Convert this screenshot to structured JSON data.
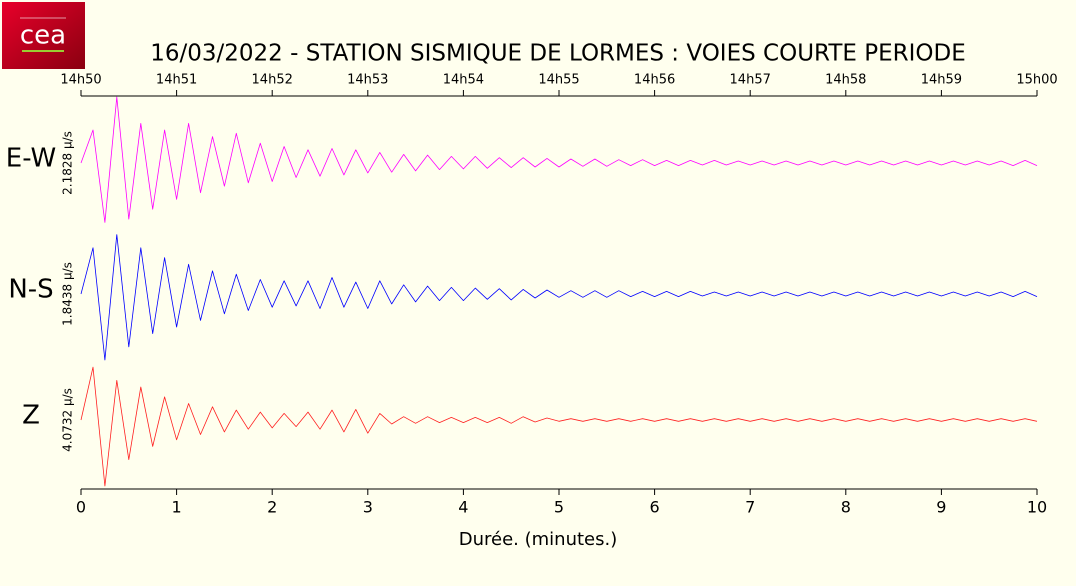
{
  "logo_text": "cea",
  "chart_data": {
    "type": "seismogram",
    "title": "16/03/2022  -  STATION SISMIQUE DE LORMES : VOIES COURTE PERIODE",
    "xlabel": "Durée.  (minutes.)",
    "xlim": [
      0,
      10
    ],
    "xticks": [
      0,
      1,
      2,
      3,
      4,
      5,
      6,
      7,
      8,
      9,
      10
    ],
    "x2ticks": [
      {
        "value": 0,
        "label": "14h50"
      },
      {
        "value": 1,
        "label": "14h51"
      },
      {
        "value": 2,
        "label": "14h52"
      },
      {
        "value": 3,
        "label": "14h53"
      },
      {
        "value": 4,
        "label": "14h54"
      },
      {
        "value": 5,
        "label": "14h55"
      },
      {
        "value": 6,
        "label": "14h56"
      },
      {
        "value": 7,
        "label": "14h57"
      },
      {
        "value": 8,
        "label": "14h58"
      },
      {
        "value": 9,
        "label": "14h59"
      },
      {
        "value": 10,
        "label": "15h00"
      }
    ],
    "ylim": [
      -1,
      1
    ],
    "x": [
      0,
      0.125,
      0.25,
      0.375,
      0.5,
      0.625,
      0.75,
      0.875,
      1,
      1.125,
      1.25,
      1.375,
      1.5,
      1.625,
      1.75,
      1.875,
      2,
      2.125,
      2.25,
      2.375,
      2.5,
      2.625,
      2.75,
      2.875,
      3,
      3.125,
      3.25,
      3.375,
      3.5,
      3.625,
      3.75,
      3.875,
      4,
      4.125,
      4.25,
      4.375,
      4.5,
      4.625,
      4.75,
      4.875,
      5,
      5.125,
      5.25,
      5.375,
      5.5,
      5.625,
      5.75,
      5.875,
      6,
      6.125,
      6.25,
      6.375,
      6.5,
      6.625,
      6.75,
      6.875,
      7,
      7.125,
      7.25,
      7.375,
      7.5,
      7.625,
      7.75,
      7.875,
      8,
      8.125,
      8.25,
      8.375,
      8.5,
      8.625,
      8.75,
      8.875,
      9,
      9.125,
      9.25,
      9.375,
      9.5,
      9.625,
      9.75,
      9.875,
      10
    ],
    "series": [
      {
        "name": "E-W",
        "scale": "2.1828 µ/s",
        "color": "#ff00ff",
        "values": [
          0,
          0.5,
          -0.9,
          1.0,
          -0.85,
          0.6,
          -0.7,
          0.5,
          -0.55,
          0.6,
          -0.45,
          0.4,
          -0.35,
          0.45,
          -0.3,
          0.3,
          -0.28,
          0.25,
          -0.22,
          0.2,
          -0.2,
          0.22,
          -0.18,
          0.2,
          -0.15,
          0.16,
          -0.14,
          0.13,
          -0.12,
          0.12,
          -0.1,
          0.1,
          -0.09,
          0.1,
          -0.08,
          0.08,
          -0.07,
          0.08,
          -0.06,
          0.07,
          -0.06,
          0.06,
          -0.05,
          0.06,
          -0.05,
          0.05,
          -0.04,
          0.05,
          -0.04,
          0.04,
          -0.04,
          0.04,
          -0.03,
          0.04,
          -0.03,
          0.03,
          -0.03,
          0.03,
          -0.03,
          0.03,
          -0.03,
          0.03,
          -0.03,
          0.03,
          -0.03,
          0.03,
          -0.03,
          0.03,
          -0.03,
          0.03,
          -0.03,
          0.03,
          -0.03,
          0.03,
          -0.03,
          0.03,
          -0.03,
          0.03,
          -0.04,
          0.04,
          -0.04
        ]
      },
      {
        "name": "N-S",
        "scale": "1.8438 µ/s",
        "color": "#0000ff",
        "values": [
          0,
          0.7,
          -1.0,
          0.9,
          -0.8,
          0.7,
          -0.6,
          0.55,
          -0.5,
          0.45,
          -0.4,
          0.35,
          -0.3,
          0.3,
          -0.25,
          0.22,
          -0.2,
          0.2,
          -0.18,
          0.2,
          -0.22,
          0.25,
          -0.2,
          0.18,
          -0.22,
          0.2,
          -0.15,
          0.14,
          -0.12,
          0.12,
          -0.1,
          0.1,
          -0.1,
          0.09,
          -0.08,
          0.08,
          -0.09,
          0.07,
          -0.06,
          0.06,
          -0.05,
          0.05,
          -0.05,
          0.05,
          -0.05,
          0.05,
          -0.04,
          0.04,
          -0.04,
          0.04,
          -0.04,
          0.04,
          -0.03,
          0.03,
          -0.03,
          0.03,
          -0.03,
          0.03,
          -0.03,
          0.03,
          -0.03,
          0.03,
          -0.03,
          0.03,
          -0.03,
          0.03,
          -0.03,
          0.03,
          -0.03,
          0.03,
          -0.03,
          0.03,
          -0.03,
          0.03,
          -0.03,
          0.03,
          -0.03,
          0.03,
          -0.04,
          0.04,
          -0.04
        ]
      },
      {
        "name": "Z",
        "scale": "4.0732 µ/s",
        "color": "#ff2020",
        "values": [
          0,
          0.8,
          -1.0,
          0.6,
          -0.6,
          0.5,
          -0.4,
          0.35,
          -0.3,
          0.25,
          -0.22,
          0.2,
          -0.18,
          0.15,
          -0.14,
          0.12,
          -0.12,
          0.1,
          -0.1,
          0.12,
          -0.14,
          0.15,
          -0.18,
          0.16,
          -0.2,
          0.1,
          -0.06,
          0.05,
          -0.05,
          0.05,
          -0.04,
          0.04,
          -0.04,
          0.04,
          -0.04,
          0.04,
          -0.05,
          0.05,
          -0.03,
          0.03,
          -0.02,
          0.02,
          -0.02,
          0.02,
          -0.02,
          0.02,
          -0.02,
          0.02,
          -0.02,
          0.02,
          -0.02,
          0.02,
          -0.02,
          0.02,
          -0.02,
          0.02,
          -0.02,
          0.02,
          -0.02,
          0.02,
          -0.02,
          0.02,
          -0.02,
          0.02,
          -0.02,
          0.02,
          -0.02,
          0.02,
          -0.02,
          0.02,
          -0.02,
          0.02,
          -0.02,
          0.02,
          -0.02,
          0.02,
          -0.02,
          0.02,
          -0.02,
          0.02,
          -0.02
        ]
      }
    ]
  }
}
